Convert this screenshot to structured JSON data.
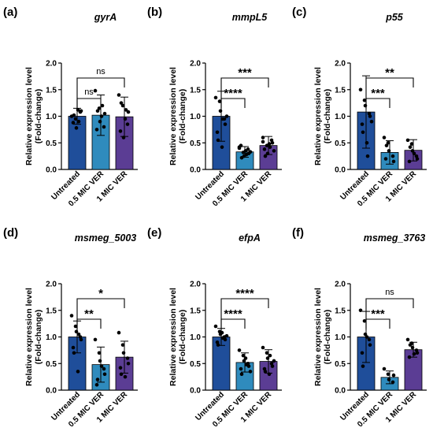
{
  "chart_data": [
    {
      "type": "bar",
      "panel_label": "(a)",
      "title": "gyrA",
      "ylabel": "Relative expression level\n(Fold-change)",
      "ylim": [
        0,
        2.0
      ],
      "yticks": [
        "0.0",
        "0.5",
        "1.0",
        "1.5",
        "2.0"
      ],
      "categories": [
        "Untreated",
        "0.5 MIC VER",
        "1 MIC VER"
      ],
      "colors": [
        "#1f4e9a",
        "#2f8bbd",
        "#5b3d94"
      ],
      "values": [
        1.0,
        1.02,
        0.99
      ],
      "errors": [
        0.15,
        0.38,
        0.37
      ],
      "points": [
        [
          1.0,
          0.95,
          0.78,
          1.08,
          1.1,
          0.88,
          1.02,
          1.12,
          0.9
        ],
        [
          1.48,
          1.15,
          0.9,
          0.8,
          1.05,
          0.75,
          1.1,
          1.0,
          1.2
        ],
        [
          1.4,
          1.2,
          0.6,
          0.85,
          1.08,
          0.72,
          1.25,
          0.95,
          1.12
        ]
      ],
      "significance": [
        {
          "from": 0,
          "to": 1,
          "label": "ns"
        },
        {
          "from": 0,
          "to": 2,
          "label": "ns"
        }
      ]
    },
    {
      "type": "bar",
      "panel_label": "(b)",
      "title": "mmpL5",
      "ylabel": "Relative expression level\n(Fold-change)",
      "ylim": [
        0,
        2.0
      ],
      "yticks": [
        "0.0",
        "0.5",
        "1.0",
        "1.5",
        "2.0"
      ],
      "categories": [
        "Untreated",
        "0.5 MIC VER",
        "1 MIC VER"
      ],
      "colors": [
        "#1f4e9a",
        "#2f8bbd",
        "#5b3d94"
      ],
      "values": [
        1.0,
        0.33,
        0.45
      ],
      "errors": [
        0.47,
        0.1,
        0.17
      ],
      "points": [
        [
          1.35,
          1.28,
          1.1,
          0.95,
          0.85,
          0.7,
          0.55,
          0.42,
          0.95,
          1.0
        ],
        [
          0.4,
          0.32,
          0.25,
          0.38,
          0.3,
          0.45,
          0.22,
          0.35,
          0.28,
          0.33,
          0.42
        ],
        [
          0.6,
          0.45,
          0.3,
          0.55,
          0.5,
          0.38,
          0.25,
          0.48,
          0.42,
          0.35,
          0.52
        ]
      ],
      "significance": [
        {
          "from": 0,
          "to": 1,
          "label": "****"
        },
        {
          "from": 0,
          "to": 2,
          "label": "***"
        }
      ]
    },
    {
      "type": "bar",
      "panel_label": "(c)",
      "title": "p55",
      "ylabel": "Relative expression level\n(Fold-change)",
      "ylim": [
        0,
        2.0
      ],
      "yticks": [
        "0.0",
        "0.5",
        "1.0",
        "1.5",
        "2.0"
      ],
      "categories": [
        "Untreated",
        "0.5 MIC VER",
        "1 MIC VER"
      ],
      "colors": [
        "#1f4e9a",
        "#2f8bbd",
        "#5b3d94"
      ],
      "values": [
        1.08,
        0.32,
        0.36
      ],
      "errors": [
        0.68,
        0.22,
        0.2
      ],
      "points": [
        [
          1.5,
          1.3,
          1.2,
          1.05,
          1.0,
          0.85,
          0.7,
          0.5,
          0.25,
          0.9
        ],
        [
          0.6,
          0.5,
          0.35,
          0.25,
          0.15,
          0.2,
          0.45
        ],
        [
          0.55,
          0.48,
          0.35,
          0.25,
          0.2,
          0.15,
          0.42,
          0.3
        ]
      ],
      "significance": [
        {
          "from": 0,
          "to": 1,
          "label": "***"
        },
        {
          "from": 0,
          "to": 2,
          "label": "**"
        }
      ]
    },
    {
      "type": "bar",
      "panel_label": "(d)",
      "title": "msmeg_5003",
      "ylabel": "Relative expression level\n(Fold-change)",
      "ylim": [
        0,
        2.0
      ],
      "yticks": [
        "0.0",
        "0.5",
        "1.0",
        "1.5",
        "2.0"
      ],
      "categories": [
        "Untreated",
        "0.5 MIC VER",
        "1 MIC VER"
      ],
      "colors": [
        "#1f4e9a",
        "#2f8bbd",
        "#5b3d94"
      ],
      "values": [
        1.0,
        0.48,
        0.62
      ],
      "errors": [
        0.3,
        0.33,
        0.3
      ],
      "points": [
        [
          1.4,
          1.2,
          1.1,
          1.0,
          0.95,
          0.8,
          0.7,
          0.35,
          1.05
        ],
        [
          0.95,
          0.7,
          0.55,
          0.4,
          0.3,
          0.1,
          0.2,
          0.45
        ],
        [
          1.08,
          0.85,
          0.7,
          0.6,
          0.5,
          0.42,
          0.3,
          0.25
        ]
      ],
      "significance": [
        {
          "from": 0,
          "to": 1,
          "label": "**"
        },
        {
          "from": 0,
          "to": 2,
          "label": "*"
        }
      ]
    },
    {
      "type": "bar",
      "panel_label": "(e)",
      "title": "efpA",
      "ylabel": "Relative expression level\n(Fold-change)",
      "ylim": [
        0,
        2.0
      ],
      "yticks": [
        "0.0",
        "0.5",
        "1.0",
        "1.5",
        "2.0"
      ],
      "categories": [
        "Untreated",
        "0.5 MIC VER",
        "1 MIC VER"
      ],
      "colors": [
        "#1f4e9a",
        "#2f8bbd",
        "#5b3d94"
      ],
      "values": [
        1.0,
        0.52,
        0.54
      ],
      "errors": [
        0.16,
        0.18,
        0.22
      ],
      "points": [
        [
          1.2,
          1.1,
          1.05,
          1.0,
          0.95,
          0.9,
          0.85,
          1.08,
          0.98,
          1.02
        ],
        [
          0.75,
          0.65,
          0.55,
          0.5,
          0.45,
          0.4,
          0.3,
          0.6,
          0.48,
          0.35
        ],
        [
          0.8,
          0.7,
          0.6,
          0.5,
          0.45,
          0.4,
          0.35,
          0.3,
          0.65,
          0.55
        ]
      ],
      "significance": [
        {
          "from": 0,
          "to": 1,
          "label": "****"
        },
        {
          "from": 0,
          "to": 2,
          "label": "****"
        }
      ]
    },
    {
      "type": "bar",
      "panel_label": "(f)",
      "title": "msmeg_3763",
      "ylabel": "Relative expression level\n(Fold-change)",
      "ylim": [
        0,
        2.0
      ],
      "yticks": [
        "0.0",
        "0.5",
        "1.0",
        "1.5",
        "2.0"
      ],
      "categories": [
        "Untreated",
        "0.5 MIC VER",
        "1 MIC VER"
      ],
      "colors": [
        "#1f4e9a",
        "#2f8bbd",
        "#5b3d94"
      ],
      "values": [
        1.0,
        0.24,
        0.76
      ],
      "errors": [
        0.48,
        0.12,
        0.14
      ],
      "points": [
        [
          1.5,
          1.3,
          1.05,
          0.95,
          0.85,
          0.7,
          0.45,
          1.0
        ],
        [
          0.4,
          0.3,
          0.2,
          0.15,
          0.28
        ],
        [
          0.95,
          0.88,
          0.8,
          0.75,
          0.7,
          0.62,
          0.85,
          0.68
        ]
      ],
      "significance": [
        {
          "from": 0,
          "to": 1,
          "label": "***"
        },
        {
          "from": 0,
          "to": 2,
          "label": "ns"
        }
      ]
    }
  ]
}
